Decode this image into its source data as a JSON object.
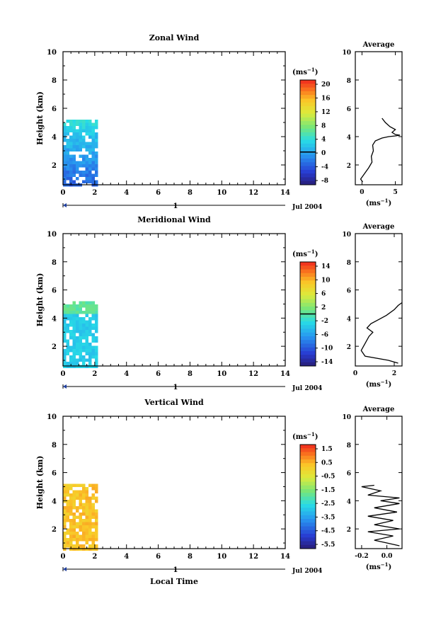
{
  "chart_data": [
    {
      "type": "heatmap",
      "title": "Zonal Wind",
      "xlabel": "",
      "ylabel": "Height (km)",
      "xlim": [
        0,
        14
      ],
      "ylim": [
        0.6,
        10
      ],
      "xticks": [
        "0",
        "2",
        "4",
        "6",
        "8",
        "10",
        "12",
        "14"
      ],
      "yticks": [
        "2",
        "4",
        "6",
        "8",
        "10"
      ],
      "date_label": "1",
      "date_suffix": "Jul 2004",
      "data_extent": {
        "x": [
          0,
          2.1
        ],
        "y": [
          0.6,
          5.2
        ]
      },
      "colorbar": {
        "unit": "(ms",
        "exp": "−1",
        "unit_close": ")",
        "ticks": [
          "20",
          "16",
          "12",
          "8",
          "4",
          "0",
          "-4",
          "-8"
        ],
        "range": [
          -10,
          22
        ],
        "zero": 0
      },
      "average": {
        "title": "Average",
        "xlabel": "(ms",
        "xexp": "−1",
        "xlabel_close": ")",
        "xticks": [
          "0",
          "5"
        ],
        "xlim": [
          -1,
          6
        ],
        "yticks": [
          "2",
          "4",
          "6",
          "8",
          "10"
        ],
        "profile": [
          [
            0.1,
            0.8
          ],
          [
            -0.2,
            1.0
          ],
          [
            0.4,
            1.4
          ],
          [
            1.0,
            1.8
          ],
          [
            1.5,
            2.2
          ],
          [
            1.4,
            2.6
          ],
          [
            1.7,
            3.0
          ],
          [
            1.6,
            3.4
          ],
          [
            2.0,
            3.7
          ],
          [
            3.0,
            3.9
          ],
          [
            4.0,
            4.0
          ],
          [
            5.0,
            4.05
          ],
          [
            5.7,
            4.1
          ],
          [
            5.0,
            4.15
          ],
          [
            4.5,
            4.3
          ],
          [
            5.0,
            4.5
          ],
          [
            4.2,
            4.7
          ],
          [
            3.5,
            5.0
          ],
          [
            3.0,
            5.3
          ]
        ]
      }
    },
    {
      "type": "heatmap",
      "title": "Meridional Wind",
      "xlabel": "",
      "ylabel": "Height (km)",
      "xlim": [
        0,
        14
      ],
      "ylim": [
        0.6,
        10
      ],
      "xticks": [
        "0",
        "2",
        "4",
        "6",
        "8",
        "10",
        "12",
        "14"
      ],
      "yticks": [
        "2",
        "4",
        "6",
        "8",
        "10"
      ],
      "date_label": "1",
      "date_suffix": "Jul 2004",
      "data_extent": {
        "x": [
          0,
          2.1
        ],
        "y": [
          0.6,
          5.2
        ]
      },
      "colorbar": {
        "unit": "(ms",
        "exp": "−1",
        "unit_close": ")",
        "ticks": [
          "14",
          "10",
          "6",
          "2",
          "-2",
          "-6",
          "-10",
          "-14"
        ],
        "range": [
          -16,
          16
        ],
        "zero": 0
      },
      "average": {
        "title": "Average",
        "xlabel": "(ms",
        "xexp": "−1",
        "xlabel_close": ")",
        "xticks": [
          "0",
          "2"
        ],
        "xlim": [
          0,
          2.4
        ],
        "yticks": [
          "2",
          "4",
          "6",
          "8",
          "10"
        ],
        "profile": [
          [
            2.2,
            0.8
          ],
          [
            1.7,
            1.0
          ],
          [
            0.5,
            1.3
          ],
          [
            0.3,
            1.7
          ],
          [
            0.5,
            2.2
          ],
          [
            0.7,
            2.7
          ],
          [
            0.9,
            3.0
          ],
          [
            0.6,
            3.3
          ],
          [
            0.8,
            3.6
          ],
          [
            1.2,
            3.9
          ],
          [
            1.6,
            4.2
          ],
          [
            2.0,
            4.6
          ],
          [
            2.2,
            4.9
          ],
          [
            2.4,
            5.1
          ]
        ]
      }
    },
    {
      "type": "heatmap",
      "title": "Vertical Wind",
      "xlabel": "Local Time",
      "ylabel": "Height (km)",
      "xlim": [
        0,
        14
      ],
      "ylim": [
        0.6,
        10
      ],
      "xticks": [
        "0",
        "2",
        "4",
        "6",
        "8",
        "10",
        "12",
        "14"
      ],
      "yticks": [
        "2",
        "4",
        "6",
        "8",
        "10"
      ],
      "date_label": "1",
      "date_suffix": "Jul 2004",
      "data_extent": {
        "x": [
          0,
          2.1
        ],
        "y": [
          0.6,
          5.2
        ]
      },
      "colorbar": {
        "unit": "(ms",
        "exp": "−1",
        "unit_close": ")",
        "ticks": [
          "1.5",
          "0.5",
          "-0.5",
          "-1.5",
          "-2.5",
          "-3.5",
          "-4.5",
          "-5.5"
        ],
        "range": [
          -6,
          2
        ],
        "zero": null
      },
      "average": {
        "title": "Average",
        "xlabel": "(ms",
        "xexp": "−1",
        "xlabel_close": ")",
        "xticks": [
          "-0.2",
          "0.0"
        ],
        "xlim": [
          -0.25,
          0.12
        ],
        "yticks": [
          "2",
          "4",
          "6",
          "8",
          "10"
        ],
        "profile": [
          [
            0.1,
            0.8
          ],
          [
            0.0,
            1.0
          ],
          [
            -0.1,
            1.2
          ],
          [
            0.05,
            1.5
          ],
          [
            -0.15,
            1.8
          ],
          [
            0.1,
            2.0
          ],
          [
            -0.1,
            2.3
          ],
          [
            0.05,
            2.6
          ],
          [
            -0.15,
            2.9
          ],
          [
            0.08,
            3.2
          ],
          [
            -0.1,
            3.5
          ],
          [
            0.1,
            3.8
          ],
          [
            -0.05,
            4.0
          ],
          [
            0.1,
            4.2
          ],
          [
            -0.15,
            4.4
          ],
          [
            -0.05,
            4.7
          ],
          [
            -0.2,
            5.0
          ],
          [
            -0.1,
            5.1
          ]
        ]
      }
    }
  ]
}
